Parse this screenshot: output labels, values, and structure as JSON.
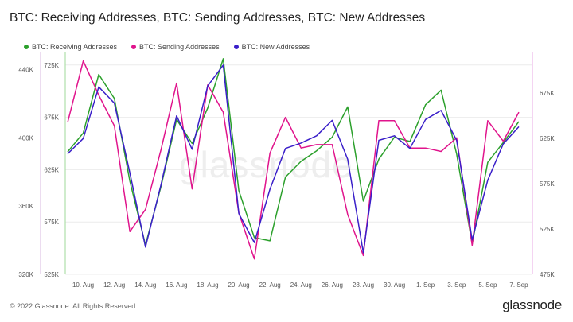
{
  "title": "BTC: Receiving Addresses, BTC: Sending Addresses, BTC: New Addresses",
  "footer": {
    "copyright": "© 2022 Glassnode. All Rights Reserved.",
    "brand": "glassnode"
  },
  "watermark": "glassnode",
  "colors": {
    "receiving": "#2ca02c",
    "sending": "#e0148c",
    "new": "#3a1fc9",
    "grid": "#ececec",
    "axis_left1": "#d9b8e0",
    "axis_left2": "#9fd99a",
    "axis_right": "#e9a8e6"
  },
  "chart_data": {
    "type": "line",
    "x_tick_labels": [
      "10. Aug",
      "12. Aug",
      "14. Aug",
      "16. Aug",
      "18. Aug",
      "20. Aug",
      "22. Aug",
      "24. Aug",
      "26. Aug",
      "28. Aug",
      "30. Aug",
      "1. Sep",
      "3. Sep",
      "5. Sep",
      "7. Sep"
    ],
    "x": [
      "2022-08-09",
      "2022-08-10",
      "2022-08-11",
      "2022-08-12",
      "2022-08-13",
      "2022-08-14",
      "2022-08-15",
      "2022-08-16",
      "2022-08-17",
      "2022-08-18",
      "2022-08-19",
      "2022-08-20",
      "2022-08-21",
      "2022-08-22",
      "2022-08-23",
      "2022-08-24",
      "2022-08-25",
      "2022-08-26",
      "2022-08-27",
      "2022-08-28",
      "2022-08-29",
      "2022-08-30",
      "2022-08-31",
      "2022-09-01",
      "2022-09-02",
      "2022-09-03",
      "2022-09-04",
      "2022-09-05",
      "2022-09-06",
      "2022-09-07"
    ],
    "axes": {
      "sending_left": {
        "ticks": [
          "320K",
          "360K",
          "400K",
          "440K"
        ],
        "range": [
          320000,
          450000
        ]
      },
      "receiving_left": {
        "ticks": [
          "525K",
          "575K",
          "625K",
          "675K",
          "725K"
        ],
        "range": [
          525000,
          737000
        ]
      },
      "new_right": {
        "ticks": [
          "475K",
          "525K",
          "575K",
          "625K",
          "675K"
        ],
        "range": [
          475000,
          720000
        ]
      }
    },
    "legend": [
      "BTC: Receiving Addresses",
      "BTC: Sending Addresses",
      "BTC: New Addresses"
    ],
    "series": [
      {
        "name": "BTC: Receiving Addresses",
        "axis": "receiving_left",
        "values": [
          642000,
          660000,
          716000,
          693000,
          614000,
          553000,
          609000,
          673000,
          650000,
          684000,
          731000,
          605000,
          560000,
          557000,
          618000,
          633000,
          643000,
          656000,
          685000,
          595000,
          635000,
          656000,
          652000,
          687000,
          701000,
          640000,
          554000,
          632000,
          651000,
          671000
        ]
      },
      {
        "name": "BTC: Sending Addresses",
        "axis": "sending_left",
        "values": [
          409000,
          445000,
          425000,
          407000,
          345000,
          358000,
          393000,
          432000,
          370000,
          431000,
          415000,
          356000,
          329000,
          391000,
          412000,
          394000,
          396000,
          396000,
          355000,
          331000,
          410000,
          410000,
          394000,
          394000,
          392000,
          400000,
          337000,
          410000,
          398000,
          415000
        ]
      },
      {
        "name": "BTC: New Addresses",
        "axis": "new_right",
        "values": [
          608000,
          625000,
          682000,
          664000,
          587000,
          505000,
          574000,
          650000,
          613000,
          683000,
          706000,
          542000,
          510000,
          569000,
          614000,
          620000,
          628000,
          645000,
          602000,
          499000,
          623000,
          628000,
          614000,
          646000,
          656000,
          623000,
          513000,
          579000,
          619000,
          638000
        ]
      }
    ]
  }
}
